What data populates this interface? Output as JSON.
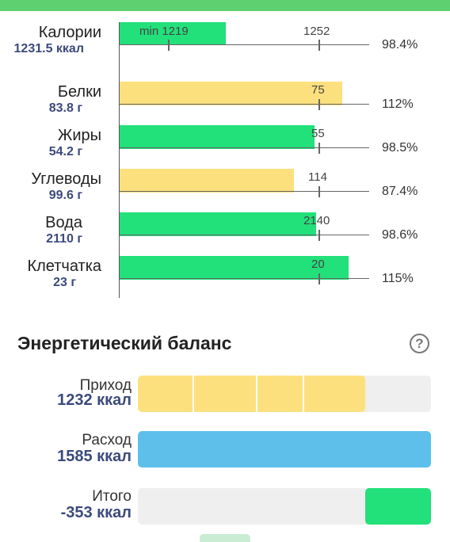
{
  "colors": {
    "green": "#22e07a",
    "yellow": "#fde07e",
    "blue": "#5ebfeb",
    "track": "#efefef",
    "value_text": "#3b4a7c"
  },
  "nutrients": [
    {
      "name": "Калории",
      "amount": "1231.5 ккал",
      "target": "1252",
      "min_label": "min 1219",
      "percent": "98.4%",
      "fraction": 0.984,
      "status": "green"
    },
    {
      "name": "Белки",
      "amount": "83.8 г",
      "target": "75",
      "percent": "112%",
      "fraction": 1.12,
      "status": "yellow"
    },
    {
      "name": "Жиры",
      "amount": "54.2 г",
      "target": "55",
      "percent": "98.5%",
      "fraction": 0.985,
      "status": "green"
    },
    {
      "name": "Углеводы",
      "amount": "99.6 г",
      "target": "114",
      "percent": "87.4%",
      "fraction": 0.874,
      "status": "yellow"
    },
    {
      "name": "Вода",
      "amount": "2110 г",
      "target": "2140",
      "percent": "98.6%",
      "fraction": 0.986,
      "status": "green"
    },
    {
      "name": "Клетчатка",
      "amount": "23 г",
      "target": "20",
      "percent": "115%",
      "fraction": 1.15,
      "status": "green"
    }
  ],
  "energy_balance": {
    "title": "Энергетический баланс",
    "help_icon": "question-circle-icon",
    "income": {
      "label": "Приход",
      "value": "1232 ккал",
      "fraction": 0.78
    },
    "expense": {
      "label": "Расход",
      "value": "1585 ккал",
      "fraction": 1.0
    },
    "total": {
      "label": "Итого",
      "value": "-353 ккал",
      "fraction": 0.22
    }
  }
}
